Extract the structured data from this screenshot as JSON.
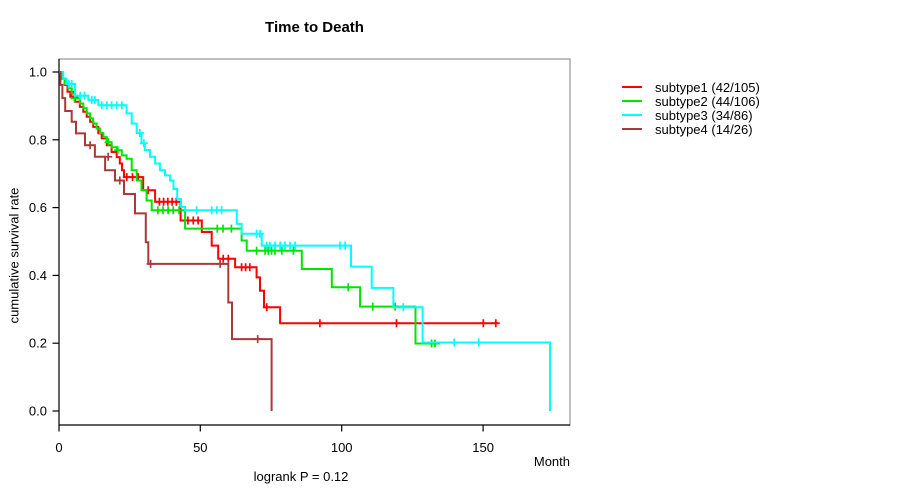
{
  "title": "Time to Death",
  "axes": {
    "x": {
      "label": "Month",
      "ticks": [
        0,
        50,
        100,
        150
      ]
    },
    "y": {
      "label": "cumulative survival rate",
      "ticks": [
        1.0,
        0.8,
        0.6,
        0.4,
        0.2,
        0.0
      ]
    }
  },
  "footer": {
    "logrank_label": "logrank P = 0.12"
  },
  "chart_data": {
    "type": "line",
    "subtype": "kaplan-meier-step",
    "title": "Time to Death",
    "xlabel": "Month",
    "ylabel": "cumulative survival rate",
    "xlim": [
      0,
      180
    ],
    "ylim": [
      0.0,
      1.0
    ],
    "x_ticks": [
      0,
      50,
      100,
      150
    ],
    "y_ticks": [
      1.0,
      0.8,
      0.6,
      0.4,
      0.2,
      0.0
    ],
    "annotation": "logrank P = 0.12",
    "grid": false,
    "legend_position": "right-outside",
    "series": [
      {
        "name": "subtype1",
        "label": "subtype1 (42/105)",
        "events": 42,
        "n": 105,
        "color": "#ff0000",
        "steps": [
          [
            1,
            0.98
          ],
          [
            2,
            0.962
          ],
          [
            3,
            0.942
          ],
          [
            4,
            0.927
          ],
          [
            5.7,
            0.912
          ],
          [
            7.4,
            0.897
          ],
          [
            8.6,
            0.883
          ],
          [
            9.8,
            0.868
          ],
          [
            11,
            0.853
          ],
          [
            12.1,
            0.838
          ],
          [
            13.9,
            0.819
          ],
          [
            15.1,
            0.804
          ],
          [
            16.9,
            0.784
          ],
          [
            18.6,
            0.764
          ],
          [
            20.4,
            0.749
          ],
          [
            21.5,
            0.73
          ],
          [
            22.3,
            0.71
          ],
          [
            23,
            0.69
          ],
          [
            29.8,
            0.651
          ],
          [
            34,
            0.617
          ],
          [
            43,
            0.562
          ],
          [
            50.5,
            0.528
          ],
          [
            54,
            0.488
          ],
          [
            56.3,
            0.449
          ],
          [
            62.3,
            0.424
          ],
          [
            69.9,
            0.394
          ],
          [
            71.1,
            0.355
          ],
          [
            72.5,
            0.306
          ],
          [
            78.2,
            0.259
          ],
          [
            155.4,
            0.259
          ]
        ],
        "censors": [
          [
            4.5,
            0.942
          ],
          [
            5.5,
            0.927
          ],
          [
            24,
            0.69
          ],
          [
            26,
            0.69
          ],
          [
            28,
            0.69
          ],
          [
            31.5,
            0.651
          ],
          [
            35.5,
            0.617
          ],
          [
            37,
            0.617
          ],
          [
            38.5,
            0.617
          ],
          [
            40,
            0.617
          ],
          [
            41.5,
            0.617
          ],
          [
            44.6,
            0.562
          ],
          [
            45.6,
            0.562
          ],
          [
            47.5,
            0.562
          ],
          [
            49.2,
            0.562
          ],
          [
            58.1,
            0.449
          ],
          [
            59.9,
            0.449
          ],
          [
            64.6,
            0.424
          ],
          [
            66,
            0.424
          ],
          [
            67.5,
            0.424
          ],
          [
            73.5,
            0.306
          ],
          [
            92.3,
            0.259
          ],
          [
            119.4,
            0.259
          ],
          [
            150.1,
            0.259
          ],
          [
            154.5,
            0.259
          ]
        ]
      },
      {
        "name": "subtype2",
        "label": "subtype2 (44/106)",
        "events": 44,
        "n": 106,
        "color": "#00e400",
        "steps": [
          [
            0.9,
            0.981
          ],
          [
            2.1,
            0.966
          ],
          [
            3.3,
            0.952
          ],
          [
            4.5,
            0.937
          ],
          [
            5.7,
            0.922
          ],
          [
            7.4,
            0.907
          ],
          [
            8.6,
            0.893
          ],
          [
            9.8,
            0.878
          ],
          [
            11,
            0.863
          ],
          [
            12.1,
            0.848
          ],
          [
            13.3,
            0.833
          ],
          [
            14.5,
            0.82
          ],
          [
            15.7,
            0.808
          ],
          [
            16.9,
            0.793
          ],
          [
            18.6,
            0.778
          ],
          [
            20.4,
            0.769
          ],
          [
            22.2,
            0.754
          ],
          [
            23.9,
            0.744
          ],
          [
            25.7,
            0.71
          ],
          [
            27.5,
            0.68
          ],
          [
            29.2,
            0.651
          ],
          [
            31,
            0.621
          ],
          [
            32.8,
            0.592
          ],
          [
            44.6,
            0.538
          ],
          [
            64.6,
            0.503
          ],
          [
            66.4,
            0.473
          ],
          [
            85.9,
            0.419
          ],
          [
            96.5,
            0.365
          ],
          [
            106.5,
            0.308
          ],
          [
            126.1,
            0.199
          ],
          [
            134.8,
            0.199
          ]
        ],
        "censors": [
          [
            5.5,
            0.922
          ],
          [
            17.5,
            0.793
          ],
          [
            20.8,
            0.769
          ],
          [
            35,
            0.592
          ],
          [
            36.8,
            0.592
          ],
          [
            38.6,
            0.592
          ],
          [
            40.4,
            0.592
          ],
          [
            42.5,
            0.592
          ],
          [
            56,
            0.538
          ],
          [
            58,
            0.538
          ],
          [
            61,
            0.538
          ],
          [
            69.9,
            0.473
          ],
          [
            72.9,
            0.473
          ],
          [
            74,
            0.473
          ],
          [
            75.2,
            0.473
          ],
          [
            76.4,
            0.473
          ],
          [
            78.8,
            0.473
          ],
          [
            82.9,
            0.473
          ],
          [
            102.3,
            0.365
          ],
          [
            111,
            0.308
          ],
          [
            118.9,
            0.308
          ],
          [
            131.8,
            0.199
          ],
          [
            133,
            0.199
          ]
        ]
      },
      {
        "name": "subtype3",
        "label": "subtype3 (34/86)",
        "events": 34,
        "n": 86,
        "color": "#00ffff",
        "steps": [
          [
            1.5,
            0.98
          ],
          [
            2.7,
            0.965
          ],
          [
            5.7,
            0.93
          ],
          [
            10.4,
            0.917
          ],
          [
            13.9,
            0.902
          ],
          [
            23.9,
            0.878
          ],
          [
            25.7,
            0.848
          ],
          [
            27.5,
            0.82
          ],
          [
            29.2,
            0.79
          ],
          [
            30.4,
            0.77
          ],
          [
            32.2,
            0.75
          ],
          [
            34,
            0.73
          ],
          [
            35.7,
            0.71
          ],
          [
            37.5,
            0.695
          ],
          [
            39.3,
            0.68
          ],
          [
            40.5,
            0.655
          ],
          [
            41.8,
            0.625
          ],
          [
            43.2,
            0.602
          ],
          [
            44.6,
            0.592
          ],
          [
            62.9,
            0.552
          ],
          [
            64.6,
            0.523
          ],
          [
            71.7,
            0.488
          ],
          [
            103.3,
            0.426
          ],
          [
            110.6,
            0.363
          ],
          [
            118.3,
            0.306
          ],
          [
            128.6,
            0.202
          ],
          [
            173.7,
            0.0
          ]
        ],
        "censors": [
          [
            3.5,
            0.965
          ],
          [
            4.5,
            0.965
          ],
          [
            7.5,
            0.93
          ],
          [
            9,
            0.93
          ],
          [
            11.6,
            0.917
          ],
          [
            12.7,
            0.917
          ],
          [
            15.1,
            0.902
          ],
          [
            16.9,
            0.902
          ],
          [
            18.6,
            0.902
          ],
          [
            20.4,
            0.902
          ],
          [
            22.2,
            0.902
          ],
          [
            28.6,
            0.82
          ],
          [
            30,
            0.79
          ],
          [
            48.7,
            0.592
          ],
          [
            54,
            0.592
          ],
          [
            55.8,
            0.592
          ],
          [
            57.5,
            0.592
          ],
          [
            69.9,
            0.523
          ],
          [
            71.1,
            0.523
          ],
          [
            73.5,
            0.488
          ],
          [
            74.6,
            0.488
          ],
          [
            76.4,
            0.488
          ],
          [
            78.2,
            0.488
          ],
          [
            79.9,
            0.488
          ],
          [
            81.7,
            0.488
          ],
          [
            83.5,
            0.488
          ],
          [
            99.4,
            0.488
          ],
          [
            101.2,
            0.488
          ],
          [
            121.8,
            0.306
          ],
          [
            139.8,
            0.202
          ],
          [
            148.5,
            0.202
          ]
        ]
      },
      {
        "name": "subtype4",
        "label": "subtype4 (14/26)",
        "events": 14,
        "n": 26,
        "color": "#aa3939",
        "steps": [
          [
            0.5,
            0.962
          ],
          [
            1.2,
            0.923
          ],
          [
            2.2,
            0.885
          ],
          [
            4.5,
            0.853
          ],
          [
            6,
            0.819
          ],
          [
            9.2,
            0.784
          ],
          [
            12.7,
            0.75
          ],
          [
            16.3,
            0.71
          ],
          [
            19.8,
            0.68
          ],
          [
            23,
            0.64
          ],
          [
            26.9,
            0.583
          ],
          [
            30.7,
            0.498
          ],
          [
            31.6,
            0.434
          ],
          [
            59.9,
            0.32
          ],
          [
            61.2,
            0.212
          ],
          [
            75.2,
            0.0
          ]
        ],
        "censors": [
          [
            11,
            0.784
          ],
          [
            17.4,
            0.75
          ],
          [
            21.5,
            0.68
          ],
          [
            32.4,
            0.434
          ],
          [
            57,
            0.434
          ],
          [
            70.3,
            0.212
          ]
        ]
      }
    ]
  }
}
